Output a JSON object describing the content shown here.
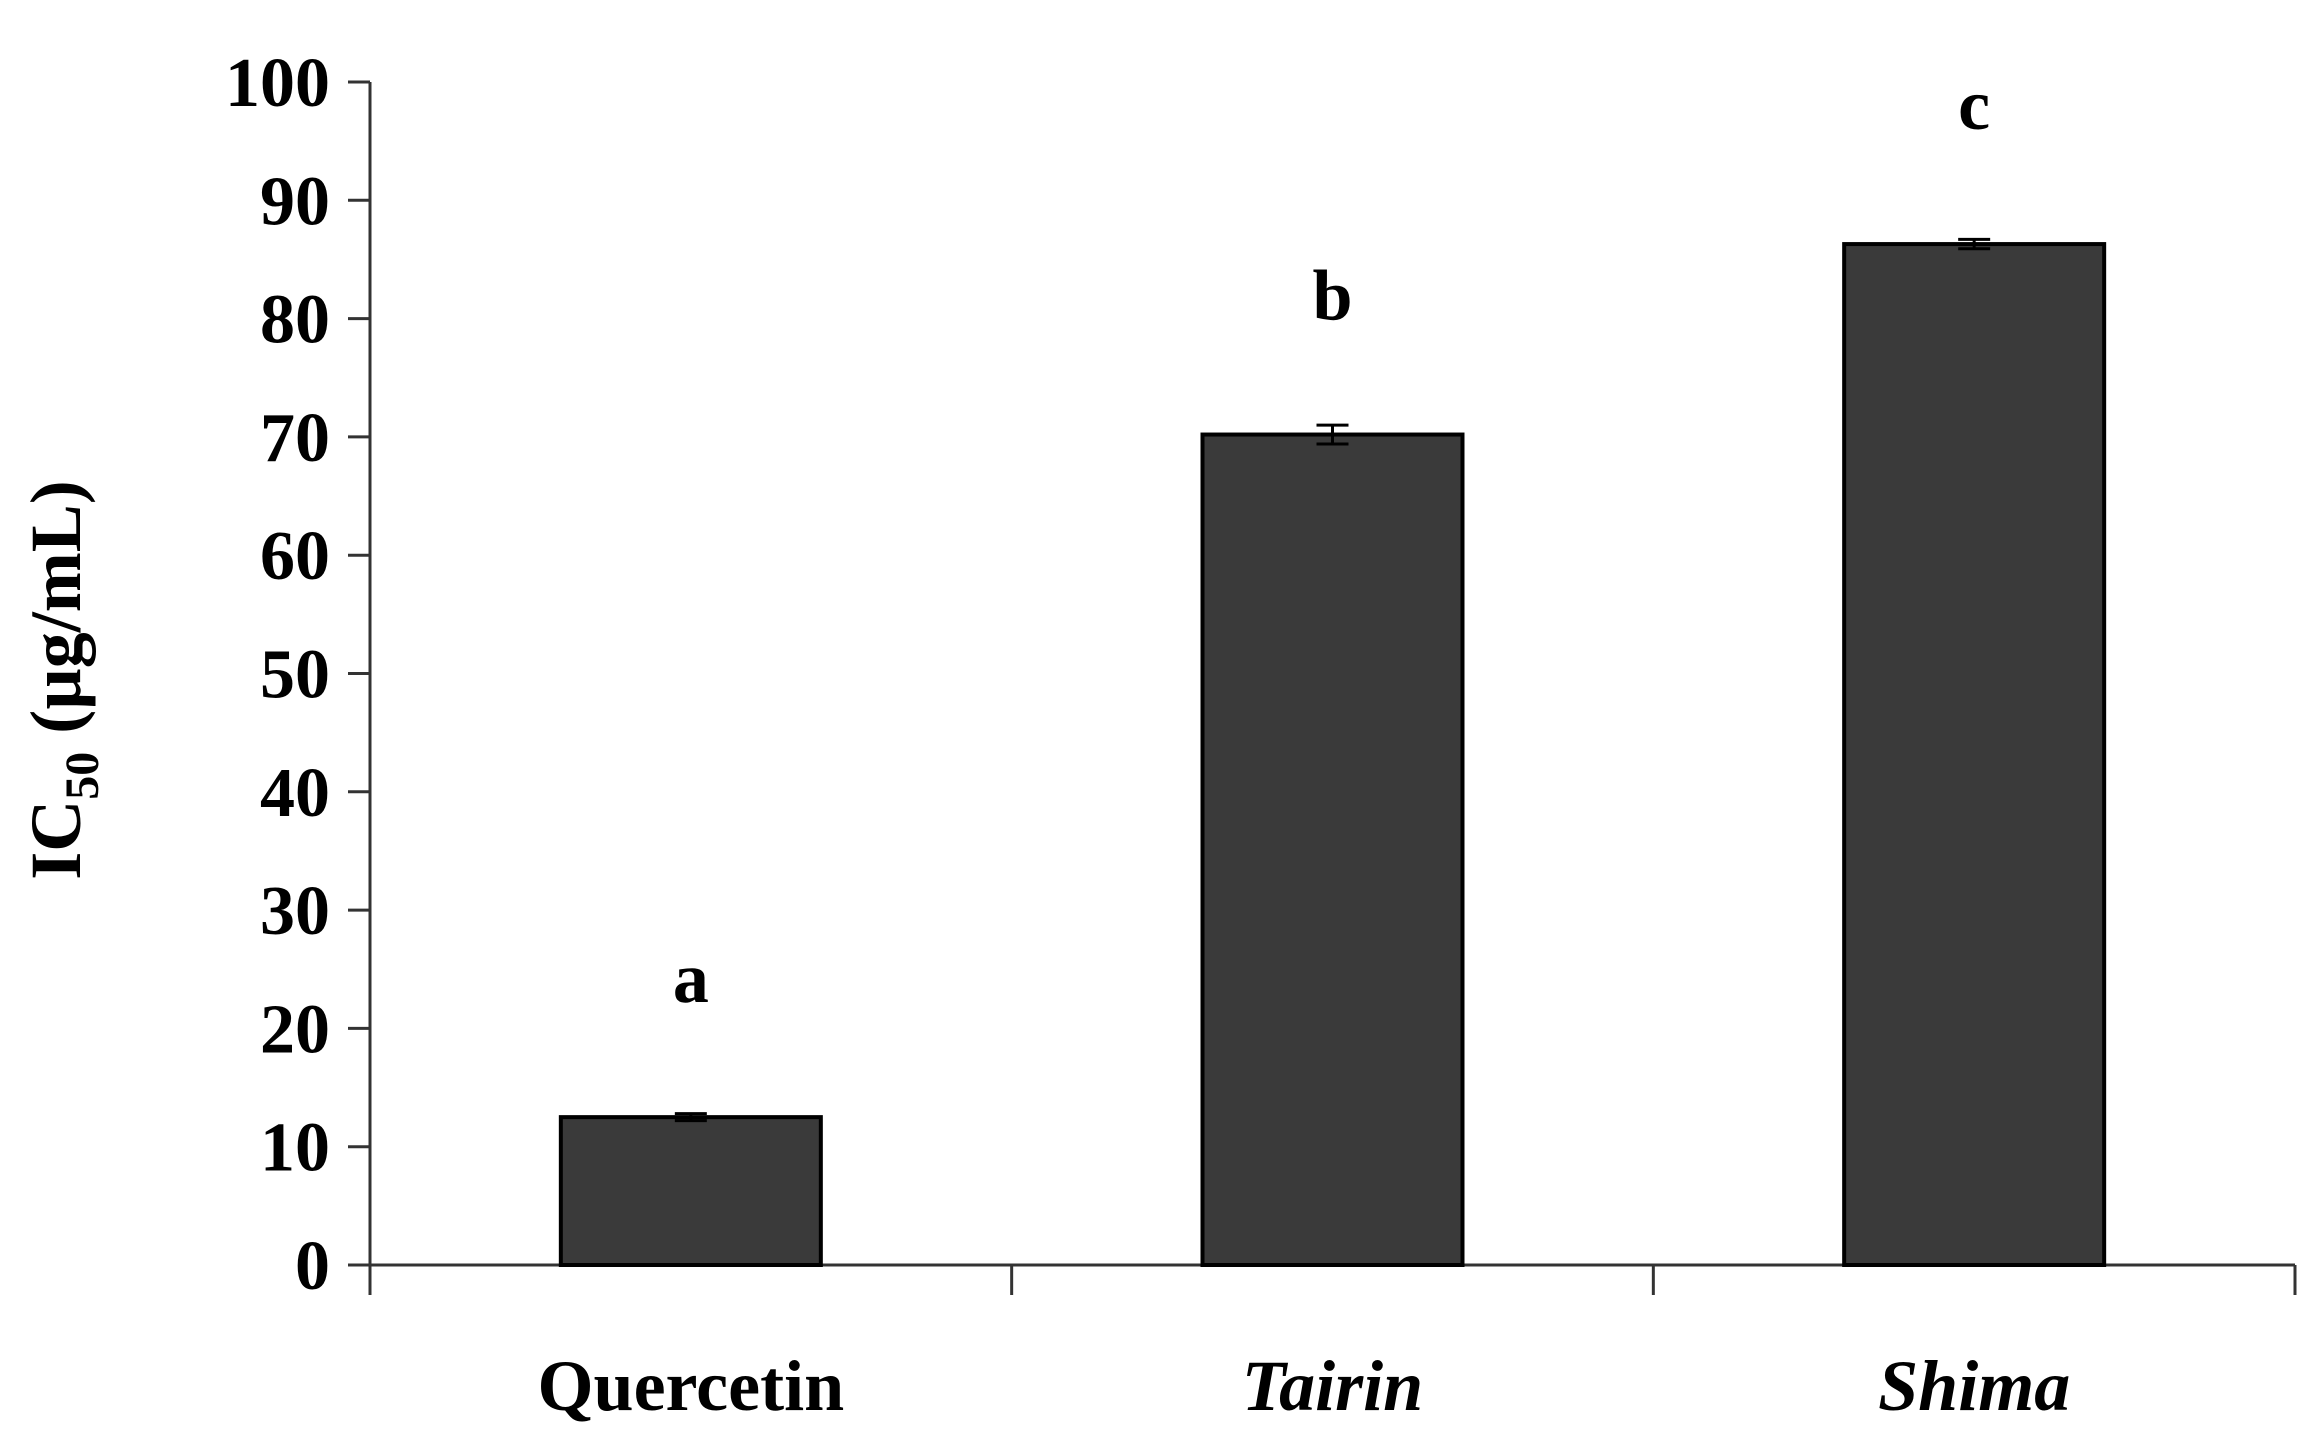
{
  "chart_data": {
    "type": "bar",
    "categories": [
      "Quercetin",
      "Tairin",
      "Shima"
    ],
    "category_italic": [
      false,
      true,
      true
    ],
    "values": [
      12.5,
      70.2,
      86.3
    ],
    "errors": [
      0.3,
      0.8,
      0.4
    ],
    "significance_letters": [
      "a",
      "b",
      "c"
    ],
    "ylabel": {
      "prefix": "IC",
      "subscript": "50",
      "suffix": " (µg/mL)"
    },
    "xlabel": "",
    "ylim": [
      0,
      100
    ],
    "yticks": [
      "0",
      "10",
      "20",
      "30",
      "40",
      "50",
      "60",
      "70",
      "80",
      "90",
      "100"
    ],
    "grid": false,
    "legend": "none",
    "colors": {
      "bar_fill": "#3a3a3a",
      "bar_stroke": "#000000",
      "axis": "#333333"
    }
  }
}
